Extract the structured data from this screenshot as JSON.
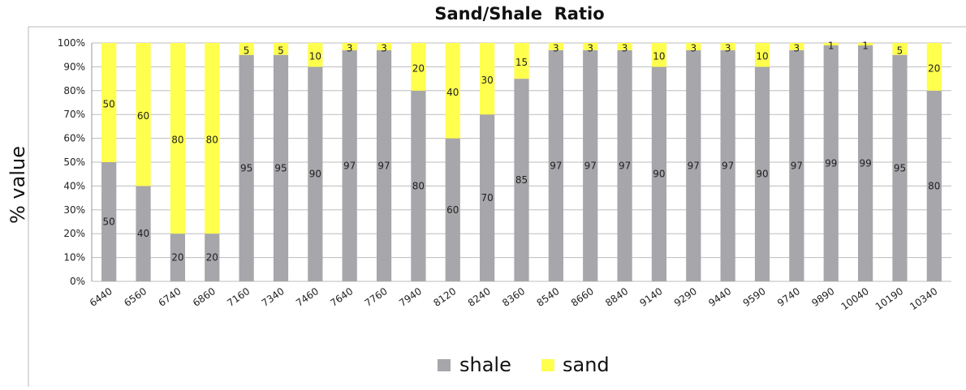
{
  "chart_data": {
    "type": "bar",
    "stacked": true,
    "title": "Sand/Shale  Ratio",
    "xlabel": "",
    "ylabel": "% value",
    "ylim": [
      0,
      100
    ],
    "yticks": [
      "0%",
      "10%",
      "20%",
      "30%",
      "40%",
      "50%",
      "60%",
      "70%",
      "80%",
      "90%",
      "100%"
    ],
    "grid": true,
    "legend_position": "bottom",
    "categories": [
      "6440",
      "6560",
      "6740",
      "6860",
      "7160",
      "7340",
      "7460",
      "7640",
      "7760",
      "7940",
      "8120",
      "8240",
      "8360",
      "8540",
      "8660",
      "8840",
      "9140",
      "9290",
      "9440",
      "9590",
      "9740",
      "9890",
      "10040",
      "10190",
      "10340"
    ],
    "series": [
      {
        "name": "shale",
        "color": "#a6a6ab",
        "values": [
          50,
          40,
          20,
          20,
          95,
          95,
          90,
          97,
          97,
          80,
          60,
          70,
          85,
          97,
          97,
          97,
          90,
          97,
          97,
          90,
          97,
          99,
          99,
          95,
          80
        ]
      },
      {
        "name": "sand",
        "color": "#ffff4d",
        "values": [
          50,
          60,
          80,
          80,
          5,
          5,
          10,
          3,
          3,
          20,
          40,
          30,
          15,
          3,
          3,
          3,
          10,
          3,
          3,
          10,
          3,
          1,
          1,
          5,
          20
        ]
      }
    ]
  }
}
